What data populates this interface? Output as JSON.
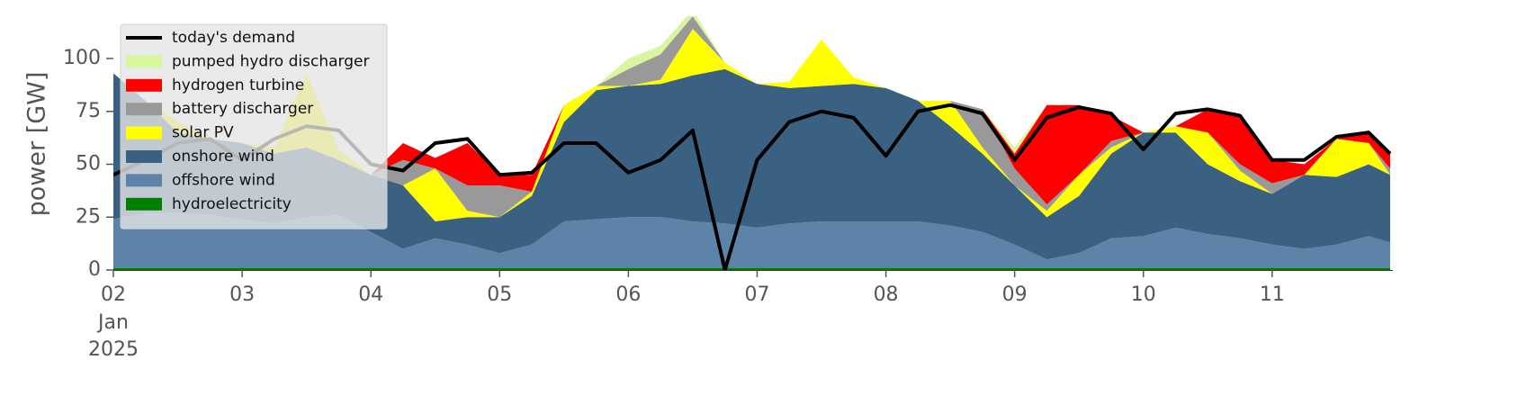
{
  "chart_data": {
    "type": "stacked-area",
    "ylabel": "power [GW]",
    "x": [
      "2025-01-02T00:00",
      "2025-01-02T06:00",
      "2025-01-02T12:00",
      "2025-01-02T18:00",
      "2025-01-03T00:00",
      "2025-01-03T06:00",
      "2025-01-03T12:00",
      "2025-01-03T18:00",
      "2025-01-04T00:00",
      "2025-01-04T06:00",
      "2025-01-04T12:00",
      "2025-01-04T18:00",
      "2025-01-05T00:00",
      "2025-01-05T06:00",
      "2025-01-05T12:00",
      "2025-01-05T18:00",
      "2025-01-06T00:00",
      "2025-01-06T06:00",
      "2025-01-06T12:00",
      "2025-01-06T18:00",
      "2025-01-07T00:00",
      "2025-01-07T06:00",
      "2025-01-07T12:00",
      "2025-01-07T18:00",
      "2025-01-08T00:00",
      "2025-01-08T06:00",
      "2025-01-08T12:00",
      "2025-01-08T18:00",
      "2025-01-09T00:00",
      "2025-01-09T06:00",
      "2025-01-09T12:00",
      "2025-01-09T18:00",
      "2025-01-10T00:00",
      "2025-01-10T06:00",
      "2025-01-10T12:00",
      "2025-01-10T18:00",
      "2025-01-11T00:00",
      "2025-01-11T06:00",
      "2025-01-11T12:00",
      "2025-01-11T18:00",
      "2025-01-11T22:00"
    ],
    "xlim": [
      "2025-01-02T00:00",
      "2025-01-11T22:30"
    ],
    "xticks": [
      {
        "value": "2025-01-02T00:00",
        "label": "02"
      },
      {
        "value": "2025-01-03T00:00",
        "label": "03"
      },
      {
        "value": "2025-01-04T00:00",
        "label": "04"
      },
      {
        "value": "2025-01-05T00:00",
        "label": "05"
      },
      {
        "value": "2025-01-06T00:00",
        "label": "06"
      },
      {
        "value": "2025-01-07T00:00",
        "label": "07"
      },
      {
        "value": "2025-01-08T00:00",
        "label": "08"
      },
      {
        "value": "2025-01-09T00:00",
        "label": "09"
      },
      {
        "value": "2025-01-10T00:00",
        "label": "10"
      },
      {
        "value": "2025-01-11T00:00",
        "label": "11"
      }
    ],
    "x_sublabels": [
      "Jan",
      "2025"
    ],
    "ylim": [
      0,
      120
    ],
    "yticks": [
      0,
      25,
      50,
      75,
      100
    ],
    "grid": false,
    "legend": "upper left",
    "series": [
      {
        "name": "hydroelectricity",
        "color": "#008000",
        "values": [
          1,
          1,
          1,
          1,
          1,
          1,
          1,
          1,
          1,
          1,
          1,
          1,
          1,
          1,
          1,
          1,
          1,
          1,
          1,
          1,
          1,
          1,
          1,
          1,
          1,
          1,
          1,
          1,
          1,
          1,
          1,
          1,
          1,
          1,
          1,
          1,
          1,
          1,
          1,
          1,
          1
        ]
      },
      {
        "name": "offshore wind",
        "color": "#5d84a8",
        "values": [
          23,
          26,
          26,
          25,
          23,
          21,
          24,
          25,
          17,
          9,
          14,
          11,
          7,
          11,
          22,
          23,
          24,
          24,
          22,
          21,
          19,
          21,
          22,
          22,
          22,
          22,
          20,
          17,
          11,
          4,
          7,
          14,
          15,
          19,
          16,
          14,
          11,
          9,
          11,
          15,
          12
        ]
      },
      {
        "name": "onshore wind",
        "color": "#3b6182",
        "values": [
          69,
          53,
          38,
          36,
          36,
          33,
          33,
          26,
          27,
          30,
          8,
          13,
          17,
          23,
          47,
          61,
          62,
          63,
          69,
          73,
          68,
          64,
          64,
          65,
          63,
          57,
          47,
          37,
          28,
          20,
          27,
          40,
          49,
          45,
          33,
          27,
          24,
          35,
          32,
          34,
          32
        ]
      },
      {
        "name": "solar PV",
        "color": "#ffff00",
        "values": [
          0,
          0,
          5,
          0,
          0,
          3,
          35,
          5,
          0,
          0,
          25,
          3,
          0,
          2,
          8,
          2,
          0,
          2,
          22,
          3,
          0,
          3,
          22,
          3,
          0,
          0,
          12,
          3,
          0,
          3,
          10,
          3,
          0,
          3,
          15,
          5,
          0,
          0,
          18,
          10,
          0
        ]
      },
      {
        "name": "battery discharger",
        "color": "#999999",
        "values": [
          0,
          0,
          0,
          0,
          0,
          0,
          0,
          0,
          0,
          12,
          0,
          12,
          15,
          0,
          0,
          0,
          8,
          12,
          6,
          0,
          0,
          0,
          0,
          0,
          0,
          0,
          0,
          18,
          8,
          3,
          0,
          3,
          0,
          0,
          0,
          3,
          5,
          0,
          0,
          0,
          3
        ]
      },
      {
        "name": "hydrogen turbine",
        "color": "#ff0000",
        "values": [
          0,
          0,
          0,
          0,
          0,
          0,
          0,
          0,
          0,
          8,
          5,
          20,
          5,
          8,
          0,
          0,
          0,
          0,
          0,
          0,
          0,
          0,
          0,
          0,
          0,
          0,
          0,
          0,
          7,
          47,
          33,
          12,
          0,
          0,
          11,
          23,
          11,
          5,
          0,
          6,
          7
        ]
      },
      {
        "name": "pumped hydro discharger",
        "color": "#d8f5a0",
        "values": [
          0,
          0,
          0,
          0,
          0,
          0,
          0,
          0,
          0,
          0,
          0,
          0,
          0,
          0,
          0,
          0,
          5,
          4,
          3,
          0,
          0,
          0,
          0,
          0,
          0,
          0,
          0,
          0,
          3,
          0,
          0,
          0,
          0,
          0,
          0,
          0,
          0,
          0,
          0,
          0,
          0
        ]
      }
    ],
    "line": {
      "name": "today's demand",
      "color": "#000000",
      "values": [
        45,
        52,
        60,
        62,
        52,
        62,
        68,
        66,
        50,
        47,
        60,
        62,
        45,
        46,
        60,
        60,
        46,
        52,
        66,
        0,
        52,
        70,
        75,
        72,
        54,
        75,
        78,
        74,
        52,
        72,
        77,
        74,
        57,
        74,
        76,
        73,
        52,
        52,
        63,
        65,
        55
      ]
    }
  }
}
